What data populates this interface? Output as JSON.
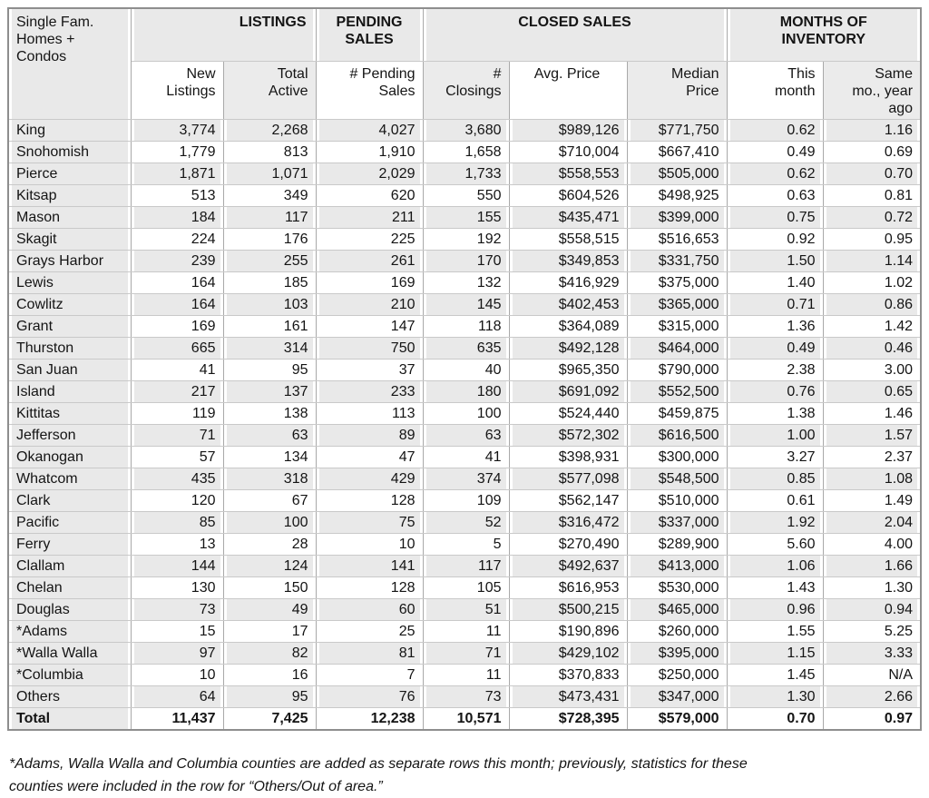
{
  "table": {
    "corner": "Single Fam.\nHomes +\nCondos",
    "groups": [
      {
        "label": "LISTINGS",
        "colspan": 2
      },
      {
        "label": "PENDING\nSALES",
        "colspan": 1
      },
      {
        "label": "CLOSED SALES",
        "colspan": 3
      },
      {
        "label": "MONTHS OF\nINVENTORY",
        "colspan": 2
      }
    ],
    "sub_headers": [
      "New\nListings",
      "Total\nActive",
      "# Pending\nSales",
      "#\nClosings",
      "Avg. Price",
      "Median\nPrice",
      "This\nmonth",
      "Same\nmo., year\nago"
    ],
    "rows": [
      [
        "King",
        "3,774",
        "2,268",
        "4,027",
        "3,680",
        "$989,126",
        "$771,750",
        "0.62",
        "1.16"
      ],
      [
        "Snohomish",
        "1,779",
        "813",
        "1,910",
        "1,658",
        "$710,004",
        "$667,410",
        "0.49",
        "0.69"
      ],
      [
        "Pierce",
        "1,871",
        "1,071",
        "2,029",
        "1,733",
        "$558,553",
        "$505,000",
        "0.62",
        "0.70"
      ],
      [
        "Kitsap",
        "513",
        "349",
        "620",
        "550",
        "$604,526",
        "$498,925",
        "0.63",
        "0.81"
      ],
      [
        "Mason",
        "184",
        "117",
        "211",
        "155",
        "$435,471",
        "$399,000",
        "0.75",
        "0.72"
      ],
      [
        "Skagit",
        "224",
        "176",
        "225",
        "192",
        "$558,515",
        "$516,653",
        "0.92",
        "0.95"
      ],
      [
        "Grays Harbor",
        "239",
        "255",
        "261",
        "170",
        "$349,853",
        "$331,750",
        "1.50",
        "1.14"
      ],
      [
        "Lewis",
        "164",
        "185",
        "169",
        "132",
        "$416,929",
        "$375,000",
        "1.40",
        "1.02"
      ],
      [
        "Cowlitz",
        "164",
        "103",
        "210",
        "145",
        "$402,453",
        "$365,000",
        "0.71",
        "0.86"
      ],
      [
        "Grant",
        "169",
        "161",
        "147",
        "118",
        "$364,089",
        "$315,000",
        "1.36",
        "1.42"
      ],
      [
        "Thurston",
        "665",
        "314",
        "750",
        "635",
        "$492,128",
        "$464,000",
        "0.49",
        "0.46"
      ],
      [
        "San Juan",
        "41",
        "95",
        "37",
        "40",
        "$965,350",
        "$790,000",
        "2.38",
        "3.00"
      ],
      [
        "Island",
        "217",
        "137",
        "233",
        "180",
        "$691,092",
        "$552,500",
        "0.76",
        "0.65"
      ],
      [
        "Kittitas",
        "119",
        "138",
        "113",
        "100",
        "$524,440",
        "$459,875",
        "1.38",
        "1.46"
      ],
      [
        "Jefferson",
        "71",
        "63",
        "89",
        "63",
        "$572,302",
        "$616,500",
        "1.00",
        "1.57"
      ],
      [
        "Okanogan",
        "57",
        "134",
        "47",
        "41",
        "$398,931",
        "$300,000",
        "3.27",
        "2.37"
      ],
      [
        "Whatcom",
        "435",
        "318",
        "429",
        "374",
        "$577,098",
        "$548,500",
        "0.85",
        "1.08"
      ],
      [
        "Clark",
        "120",
        "67",
        "128",
        "109",
        "$562,147",
        "$510,000",
        "0.61",
        "1.49"
      ],
      [
        "Pacific",
        "85",
        "100",
        "75",
        "52",
        "$316,472",
        "$337,000",
        "1.92",
        "2.04"
      ],
      [
        "Ferry",
        "13",
        "28",
        "10",
        "5",
        "$270,490",
        "$289,900",
        "5.60",
        "4.00"
      ],
      [
        "Clallam",
        "144",
        "124",
        "141",
        "117",
        "$492,637",
        "$413,000",
        "1.06",
        "1.66"
      ],
      [
        "Chelan",
        "130",
        "150",
        "128",
        "105",
        "$616,953",
        "$530,000",
        "1.43",
        "1.30"
      ],
      [
        "Douglas",
        "73",
        "49",
        "60",
        "51",
        "$500,215",
        "$465,000",
        "0.96",
        "0.94"
      ],
      [
        "*Adams",
        "15",
        "17",
        "25",
        "11",
        "$190,896",
        "$260,000",
        "1.55",
        "5.25"
      ],
      [
        "*Walla Walla",
        "97",
        "82",
        "81",
        "71",
        "$429,102",
        "$395,000",
        "1.15",
        "3.33"
      ],
      [
        "*Columbia",
        "10",
        "16",
        "7",
        "11",
        "$370,833",
        "$250,000",
        "1.45",
        "N/A"
      ],
      [
        "Others",
        "64",
        "95",
        "76",
        "73",
        "$473,431",
        "$347,000",
        "1.30",
        "2.66"
      ]
    ],
    "total_row": [
      "Total",
      "11,437",
      "7,425",
      "12,238",
      "10,571",
      "$728,395",
      "$579,000",
      "0.70",
      "0.97"
    ]
  },
  "footnote": "*Adams, Walla Walla and Columbia counties are added as separate rows this month; previously, statistics for these\ncounties were included in the row for “Others/Out of area.”",
  "colors": {
    "row_shade": "#e9e9e9",
    "border_outer": "#8e8e8e",
    "border_vertical": "#a9a9a9",
    "border_horizontal": "#c9c9c9",
    "text": "#141414"
  }
}
